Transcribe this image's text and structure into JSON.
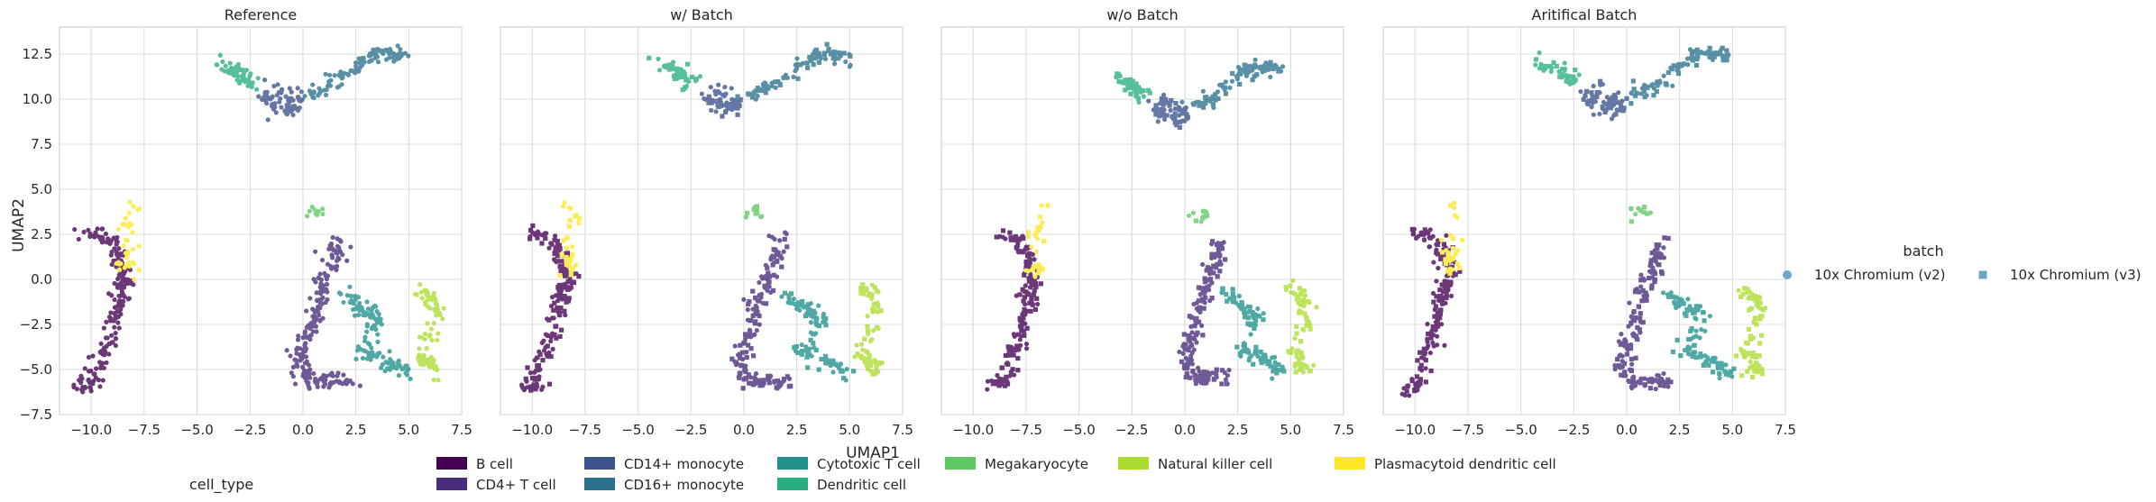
{
  "figure": {
    "xlabel": "UMAP1",
    "ylabel": "UMAP2",
    "legend_celltype_title": "cell_type",
    "legend_batch_title": "batch"
  },
  "chart_data": {
    "type": "scatter",
    "grid": true,
    "xlim": [
      -11.5,
      7.5
    ],
    "ylim": [
      -7.5,
      14.0
    ],
    "xticks": [
      "−10.0",
      "−7.5",
      "−5.0",
      "−2.5",
      "0.0",
      "2.5",
      "5.0",
      "7.5"
    ],
    "xtick_values": [
      -10,
      -7.5,
      -5,
      -2.5,
      0,
      2.5,
      5,
      7.5
    ],
    "yticks": [
      "−7.5",
      "−5.0",
      "−2.5",
      "0.0",
      "2.5",
      "5.0",
      "7.5",
      "10.0",
      "12.5"
    ],
    "ytick_values": [
      -7.5,
      -5,
      -2.5,
      0,
      2.5,
      5,
      7.5,
      10,
      12.5
    ],
    "panels": [
      {
        "title": "Reference",
        "mode": "ref"
      },
      {
        "title": "w/ Batch",
        "mode": "withbatch"
      },
      {
        "title": "w/o Batch",
        "mode": "wobatch"
      },
      {
        "title": "Aritifical Batch",
        "mode": "artificial"
      }
    ],
    "cell_types": [
      {
        "name": "B cell",
        "color": "#440154"
      },
      {
        "name": "CD4+ T cell",
        "color": "#472d7b"
      },
      {
        "name": "CD14+ monocyte",
        "color": "#3b528b"
      },
      {
        "name": "CD16+ monocyte",
        "color": "#2c728e"
      },
      {
        "name": "Cytotoxic T cell",
        "color": "#21918c"
      },
      {
        "name": "Dendritic cell",
        "color": "#28ae80"
      },
      {
        "name": "Megakaryocyte",
        "color": "#5ec962"
      },
      {
        "name": "Natural killer cell",
        "color": "#addc30"
      },
      {
        "name": "Plasmacytoid dendritic cell",
        "color": "#fde725"
      }
    ],
    "batches": [
      {
        "name": "10x Chromium (v2)",
        "marker": "circle",
        "color": "#6ea5cc"
      },
      {
        "name": "10x Chromium (v3)",
        "marker": "square",
        "color": "#6ea5cc"
      }
    ],
    "clusters": [
      {
        "type": 0,
        "points": [
          [
            -10.2,
            2.6
          ],
          [
            -9.3,
            2.4
          ],
          [
            -8.7,
            1.6
          ],
          [
            -8.6,
            0.8
          ],
          [
            -8.3,
            0.0
          ],
          [
            -8.7,
            -0.6
          ],
          [
            -8.6,
            -1.3
          ],
          [
            -9.0,
            -2.3
          ],
          [
            -9.2,
            -3.6
          ],
          [
            -9.6,
            -4.6
          ],
          [
            -10.0,
            -5.9
          ],
          [
            -10.5,
            -6.1
          ]
        ]
      },
      {
        "type": 8,
        "points": [
          [
            -8.1,
            4.3
          ],
          [
            -8.3,
            1.3
          ],
          [
            -8.2,
            0.5
          ]
        ]
      },
      {
        "type": 5,
        "points": [
          [
            -4.1,
            12.0
          ],
          [
            -3.3,
            11.6
          ],
          [
            -2.8,
            11.2
          ],
          [
            -2.5,
            10.8
          ]
        ]
      },
      {
        "type": 2,
        "points": [
          [
            -1.9,
            10.3
          ],
          [
            -1.3,
            9.6
          ],
          [
            -0.5,
            9.4
          ],
          [
            -0.3,
            10.0
          ],
          [
            -1.5,
            10.6
          ]
        ]
      },
      {
        "type": 3,
        "points": [
          [
            0.2,
            10.2
          ],
          [
            1.0,
            10.6
          ],
          [
            2.0,
            11.4
          ],
          [
            3.0,
            12.2
          ],
          [
            3.5,
            12.5
          ],
          [
            4.3,
            12.5
          ],
          [
            4.8,
            12.3
          ]
        ]
      },
      {
        "type": 6,
        "points": [
          [
            0.6,
            3.8
          ]
        ]
      },
      {
        "type": 1,
        "points": [
          [
            1.7,
            2.3
          ],
          [
            1.5,
            1.4
          ],
          [
            1.3,
            0.4
          ],
          [
            0.8,
            -0.6
          ],
          [
            0.5,
            -1.6
          ],
          [
            0.4,
            -2.6
          ],
          [
            0.0,
            -3.6
          ],
          [
            -0.2,
            -4.6
          ],
          [
            0.1,
            -5.4
          ],
          [
            0.6,
            -5.8
          ],
          [
            1.4,
            -5.6
          ],
          [
            2.2,
            -5.7
          ]
        ]
      },
      {
        "type": 4,
        "points": [
          [
            2.0,
            -0.8
          ],
          [
            2.6,
            -1.4
          ],
          [
            3.2,
            -1.8
          ],
          [
            3.6,
            -2.3
          ],
          [
            2.7,
            -4.0
          ],
          [
            3.6,
            -4.3
          ],
          [
            4.3,
            -4.8
          ],
          [
            4.9,
            -5.2
          ]
        ]
      },
      {
        "type": 7,
        "points": [
          [
            5.6,
            -0.5
          ],
          [
            6.1,
            -1.0
          ],
          [
            6.3,
            -1.9
          ],
          [
            5.6,
            -4.1
          ],
          [
            6.0,
            -4.7
          ],
          [
            6.3,
            -5.2
          ]
        ]
      }
    ]
  }
}
